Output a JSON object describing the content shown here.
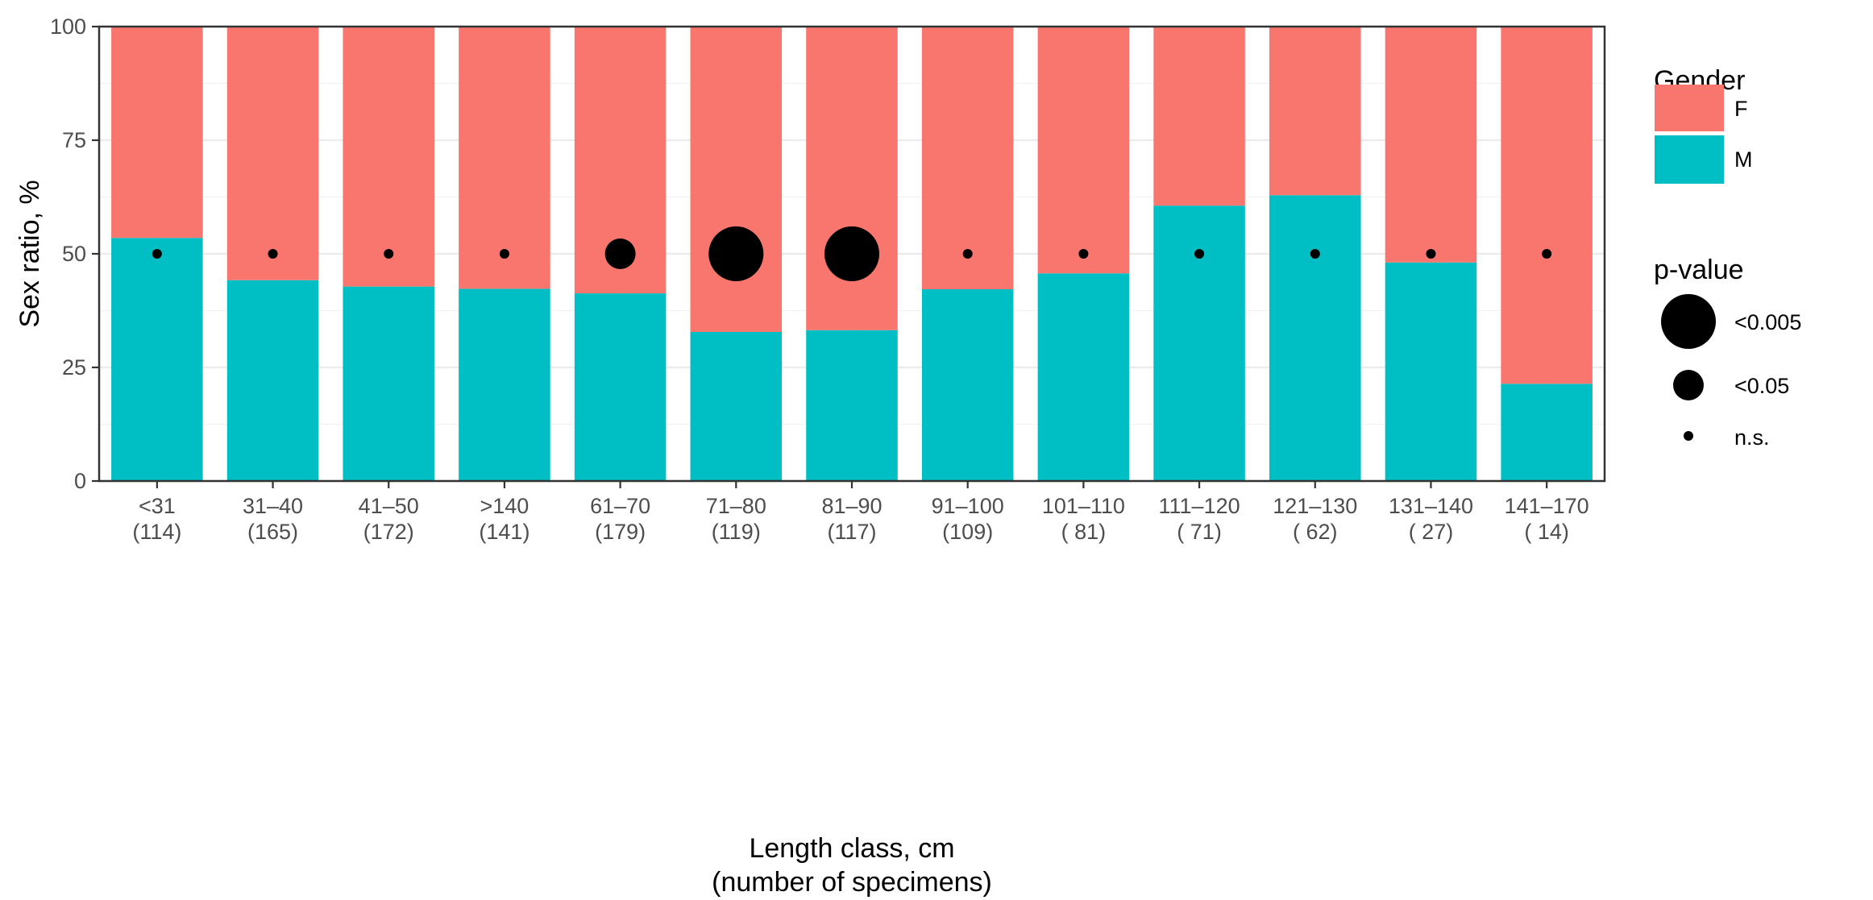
{
  "chart_data": {
    "type": "bar",
    "stacked": true,
    "categories": [
      "<31",
      "31–40",
      "41–50",
      ">140",
      "61–70",
      "71–80",
      "81–90",
      "91–100",
      "101–110",
      "111–120",
      "121–130",
      "131–140",
      "141–170"
    ],
    "counts": [
      "(114)",
      "(165)",
      "(172)",
      "(141)",
      "(179)",
      "(119)",
      "(117)",
      "(109)",
      "( 81)",
      "( 71)",
      "( 62)",
      "( 27)",
      "( 14)"
    ],
    "series": [
      {
        "name": "M",
        "color": "#00BFC4",
        "values": [
          53.5,
          44.2,
          42.8,
          42.3,
          41.3,
          32.8,
          33.2,
          42.2,
          45.7,
          60.6,
          62.9,
          48.1,
          21.4
        ]
      },
      {
        "name": "F",
        "color": "#F8766D",
        "values": [
          46.5,
          55.8,
          57.2,
          57.7,
          58.7,
          67.2,
          66.8,
          57.8,
          54.3,
          39.4,
          37.1,
          51.9,
          78.6
        ]
      }
    ],
    "p_value_markers": {
      "y": 50,
      "classes": [
        "n.s.",
        "n.s.",
        "n.s.",
        "n.s.",
        "<0.05",
        "<0.005",
        "<0.005",
        "n.s.",
        "n.s.",
        "n.s.",
        "n.s.",
        "n.s.",
        "n.s."
      ]
    },
    "xlabel_line1": "Length class, cm",
    "xlabel_line2": "(number of specimens)",
    "ylabel": "Sex ratio, %",
    "ylim": [
      0,
      100
    ],
    "yticks": [
      0,
      25,
      50,
      75,
      100
    ],
    "grid": true,
    "legend_position": "right",
    "legend": {
      "gender_title": "Gender",
      "gender_items": [
        {
          "label": "F",
          "color": "#F8766D"
        },
        {
          "label": "M",
          "color": "#00BFC4"
        }
      ],
      "pvalue_title": "p-value",
      "pvalue_items": [
        "<0.005",
        "<0.05",
        "n.s."
      ]
    }
  }
}
